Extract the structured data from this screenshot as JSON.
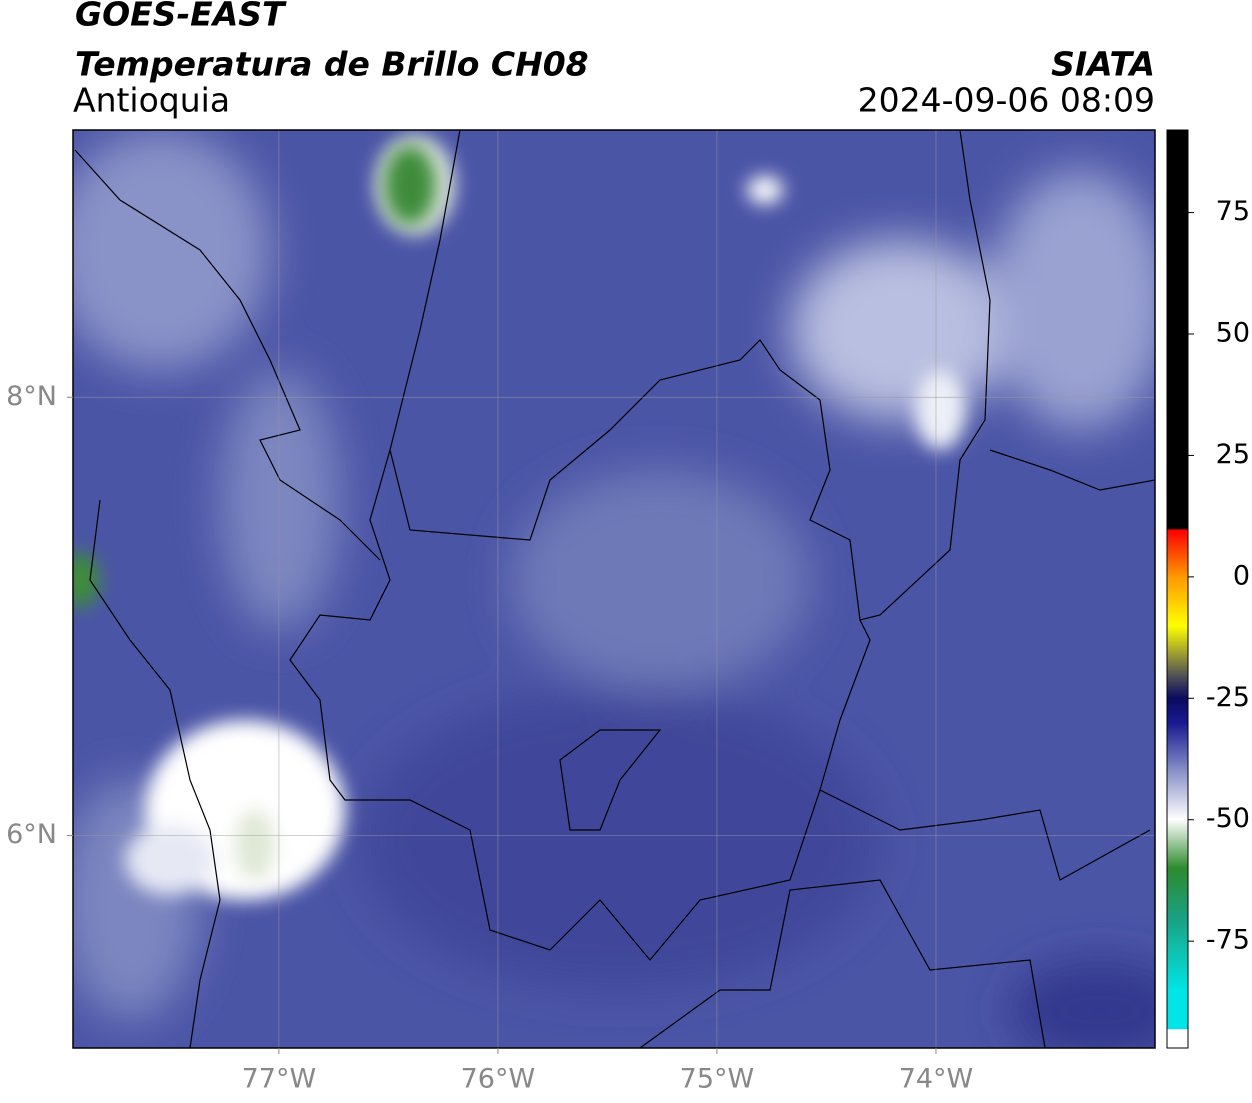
{
  "header": {
    "title": "GOES-EAST",
    "subtitle": "Temperatura de Brillo CH08",
    "region": "Antioquia",
    "source": "SIATA",
    "datetime": "2024-09-06 08:09"
  },
  "map": {
    "xlim": [
      -77.94,
      -73.0
    ],
    "ylim": [
      5.03,
      9.22
    ],
    "xticks": [
      {
        "value": -77,
        "label": "77°W"
      },
      {
        "value": -76,
        "label": "76°W"
      },
      {
        "value": -75,
        "label": "75°W"
      },
      {
        "value": -74,
        "label": "74°W"
      }
    ],
    "yticks": [
      {
        "value": 6,
        "label": "6°N"
      },
      {
        "value": 8,
        "label": "8°N"
      }
    ],
    "grid": true
  },
  "colorbar": {
    "lim": [
      -97,
      92
    ],
    "ticks": [
      75,
      50,
      25,
      0,
      -25,
      -50,
      -75
    ]
  }
}
